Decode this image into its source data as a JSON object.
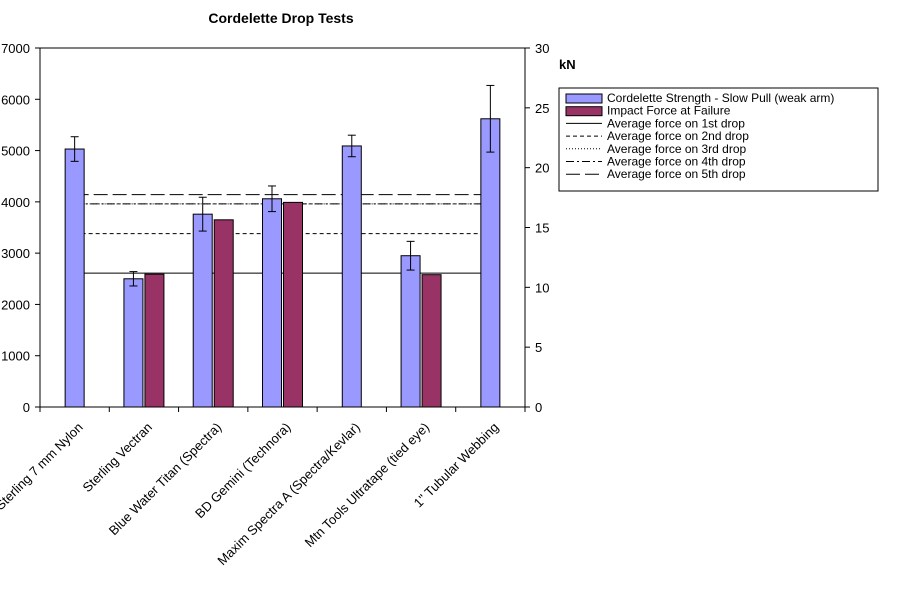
{
  "chart_data": {
    "type": "bar",
    "title": "Cordelette Drop Tests",
    "categories": [
      "Sterling 7 mm Nylon",
      "Sterling Vectran",
      "Blue Water Titan (Spectra)",
      "BD Gemini (Technora)",
      "Maxim Spectra A (Spectra/Kevlar)",
      "Mtn Tools Ultratape (tied eye)",
      "1\" Tubular Webbing"
    ],
    "series": [
      {
        "name": "Cordelette Strength - Slow Pull (weak arm)",
        "color": "#9999ff",
        "values": [
          5030,
          2500,
          3760,
          4060,
          5090,
          2950,
          5620
        ],
        "error": [
          240,
          140,
          330,
          250,
          210,
          280,
          650
        ]
      },
      {
        "name": "Impact Force at Failure",
        "color": "#993366",
        "values": [
          null,
          2590,
          3650,
          3990,
          null,
          2580,
          null
        ]
      }
    ],
    "reference_lines": [
      {
        "name": "Average force on 1st drop",
        "value": 2610,
        "dash": "solid"
      },
      {
        "name": "Average force on 2nd drop",
        "value": 3380,
        "dash": "dash"
      },
      {
        "name": "Average force on 3rd drop",
        "value": 3960,
        "dash": "dot"
      },
      {
        "name": "Average force on 4th drop",
        "value": 3960,
        "dash": "dashdot"
      },
      {
        "name": "Average force on 5th drop",
        "value": 4140,
        "dash": "longdash"
      }
    ],
    "ylim": [
      0,
      7000
    ],
    "yticks": [
      "0",
      "1000",
      "2000",
      "3000",
      "4000",
      "5000",
      "6000",
      "7000"
    ],
    "y2lim": [
      0,
      30
    ],
    "y2ticks": [
      "0",
      "5",
      "10",
      "15",
      "20",
      "25",
      "30"
    ],
    "y2label": "kN",
    "grid": false,
    "legend_position": "right"
  }
}
